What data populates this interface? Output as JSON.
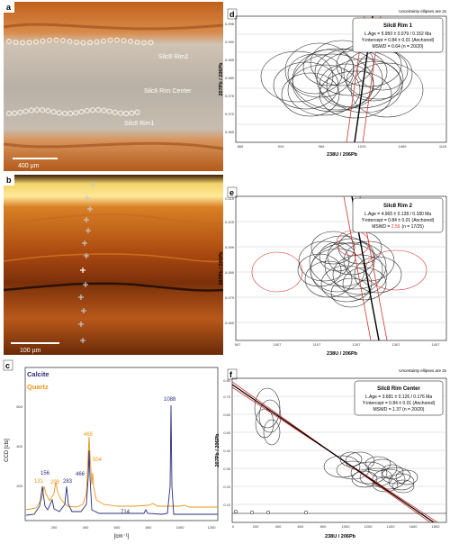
{
  "panel_a": {
    "letter": "a",
    "labels": [
      "Silc8 Rim2",
      "Silc8 Rim Center",
      "Silc8 Rim1"
    ],
    "scale": "400 µm"
  },
  "panel_b": {
    "letter": "b",
    "scale": "100 µm"
  },
  "panel_c": {
    "letter": "c",
    "ylabel": "CCD [cts]",
    "xlabel": "[cm⁻¹]",
    "legend": [
      {
        "name": "Calcite",
        "color": "#2b2c7a"
      },
      {
        "name": "Quartz",
        "color": "#e8971e"
      }
    ],
    "peak_labels_calcite": [
      "156",
      "283",
      "466",
      "714",
      "1088"
    ],
    "peak_labels_quartz": [
      "131",
      "209",
      "465",
      "504"
    ],
    "xticks": [
      "200",
      "400",
      "600",
      "800",
      "1000",
      "1200"
    ],
    "yticks": [
      "200",
      "400",
      "600"
    ]
  },
  "panel_d": {
    "letter": "d",
    "uncertainty": "Uncertainty ellipses are 2s",
    "box": {
      "title": "Silc8 Rim 1",
      "lines": [
        "L.Age = 5.950 ± 0.079 / 0.152 Ma",
        "Y-intercept = 0.84 ± 0.01 (Anchored)",
        "MSWD = 0.64 (n = 20/20)"
      ]
    },
    "ylabel": "207Pb / 206Pb",
    "xlabel": "238U / 206Pb",
    "yticks": [
      "0.065",
      "0.070",
      "0.075",
      "0.080",
      "0.085",
      "0.090",
      "0.095"
    ],
    "xticks": [
      "869",
      "919",
      "969",
      "1019",
      "1069",
      "1119"
    ]
  },
  "panel_e": {
    "letter": "e",
    "uncertainty": "Uncertainty ellipses are 2s",
    "box": {
      "title": "Silc8 Rim 2",
      "lines": [
        "L.Age = 4.965 ± 0.128 / 0.180 Ma",
        "Y-intercept = 0.84 ± 0.01 (Anchored)"
      ],
      "mswd_label": "MSWD = ",
      "mswd_value": "2.56",
      "mswd_n": "(n = 17/25)"
    },
    "ylabel": "207Pb / 206Pb",
    "xlabel": "238U / 206Pb",
    "yticks": [
      "0.069",
      "0.079",
      "0.089",
      "0.099",
      "0.109",
      "0.119"
    ],
    "xticks": [
      "907",
      "1007",
      "1107",
      "1207",
      "1307",
      "1407"
    ]
  },
  "panel_f": {
    "letter": "f",
    "uncertainty": "Uncertainty ellipses are 2s",
    "box": {
      "title": "Silc8 Rim Center",
      "lines": [
        "L.Age = 3.681 ± 0.126 / 0.176 Ma",
        "Y-intercept = 0.84 ± 0.01 (Anchored)",
        "MSWD = 1.37 (n = 20/20)"
      ]
    },
    "ylabel": "207Pb / 206Pb",
    "xlabel": "238U / 206Pb",
    "yticks": [
      "0.10",
      "0.20",
      "0.30",
      "0.40",
      "0.50",
      "0.60",
      "0.70",
      "0.80"
    ],
    "xticks": [
      "0",
      "200",
      "400",
      "600",
      "800",
      "1000",
      "1200",
      "1400",
      "1600",
      "1800"
    ]
  },
  "colors": {
    "calcite": "#2b2c7a",
    "quartz": "#e8971e",
    "redline": "#d0342c"
  }
}
